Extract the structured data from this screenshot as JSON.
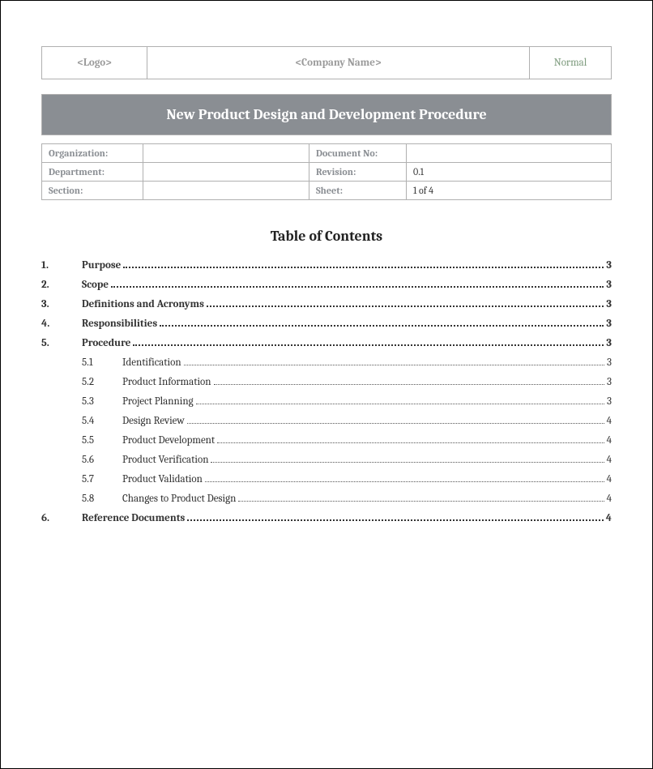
{
  "header": {
    "logo": "<Logo>",
    "company": "<Company Name>",
    "status": "Normal"
  },
  "title": "New Product Design and Development Procedure",
  "meta": {
    "rows": [
      {
        "label1": "Organization:",
        "val1": "",
        "label2": "Document No:",
        "val2": ""
      },
      {
        "label1": "Department:",
        "val1": "",
        "label2": "Revision:",
        "val2": "0.1"
      },
      {
        "label1": "Section:",
        "val1": "",
        "label2": "Sheet:",
        "val2": "1 of 4"
      }
    ]
  },
  "toc": {
    "heading": "Table of Contents",
    "entries": [
      {
        "num": "1.",
        "text": "Purpose",
        "page": "3",
        "level": 1
      },
      {
        "num": "2.",
        "text": "Scope",
        "page": "3",
        "level": 1
      },
      {
        "num": "3.",
        "text": "Definitions and Acronyms",
        "page": "3",
        "level": 1
      },
      {
        "num": "4.",
        "text": "Responsibilities",
        "page": "3",
        "level": 1
      },
      {
        "num": "5.",
        "text": "Procedure",
        "page": "3",
        "level": 1
      },
      {
        "num": "5.1",
        "text": "Identification",
        "page": "3",
        "level": 2
      },
      {
        "num": "5.2",
        "text": "Product Information",
        "page": "3",
        "level": 2
      },
      {
        "num": "5.3",
        "text": "Project Planning",
        "page": "3",
        "level": 2
      },
      {
        "num": "5.4",
        "text": "Design Review",
        "page": "4",
        "level": 2
      },
      {
        "num": "5.5",
        "text": "Product Development",
        "page": "4",
        "level": 2
      },
      {
        "num": "5.6",
        "text": "Product Verification",
        "page": "4",
        "level": 2
      },
      {
        "num": "5.7",
        "text": "Product Validation",
        "page": "4",
        "level": 2
      },
      {
        "num": "5.8",
        "text": "Changes to Product Design",
        "page": "4",
        "level": 2
      },
      {
        "num": "6.",
        "text": "Reference Documents",
        "page": "4",
        "level": 1
      }
    ]
  },
  "colors": {
    "banner_bg": "#8a8e93",
    "banner_text": "#ffffff",
    "border": "#b0b0b0",
    "muted": "#9a9a9a",
    "status": "#7d9b7d"
  }
}
